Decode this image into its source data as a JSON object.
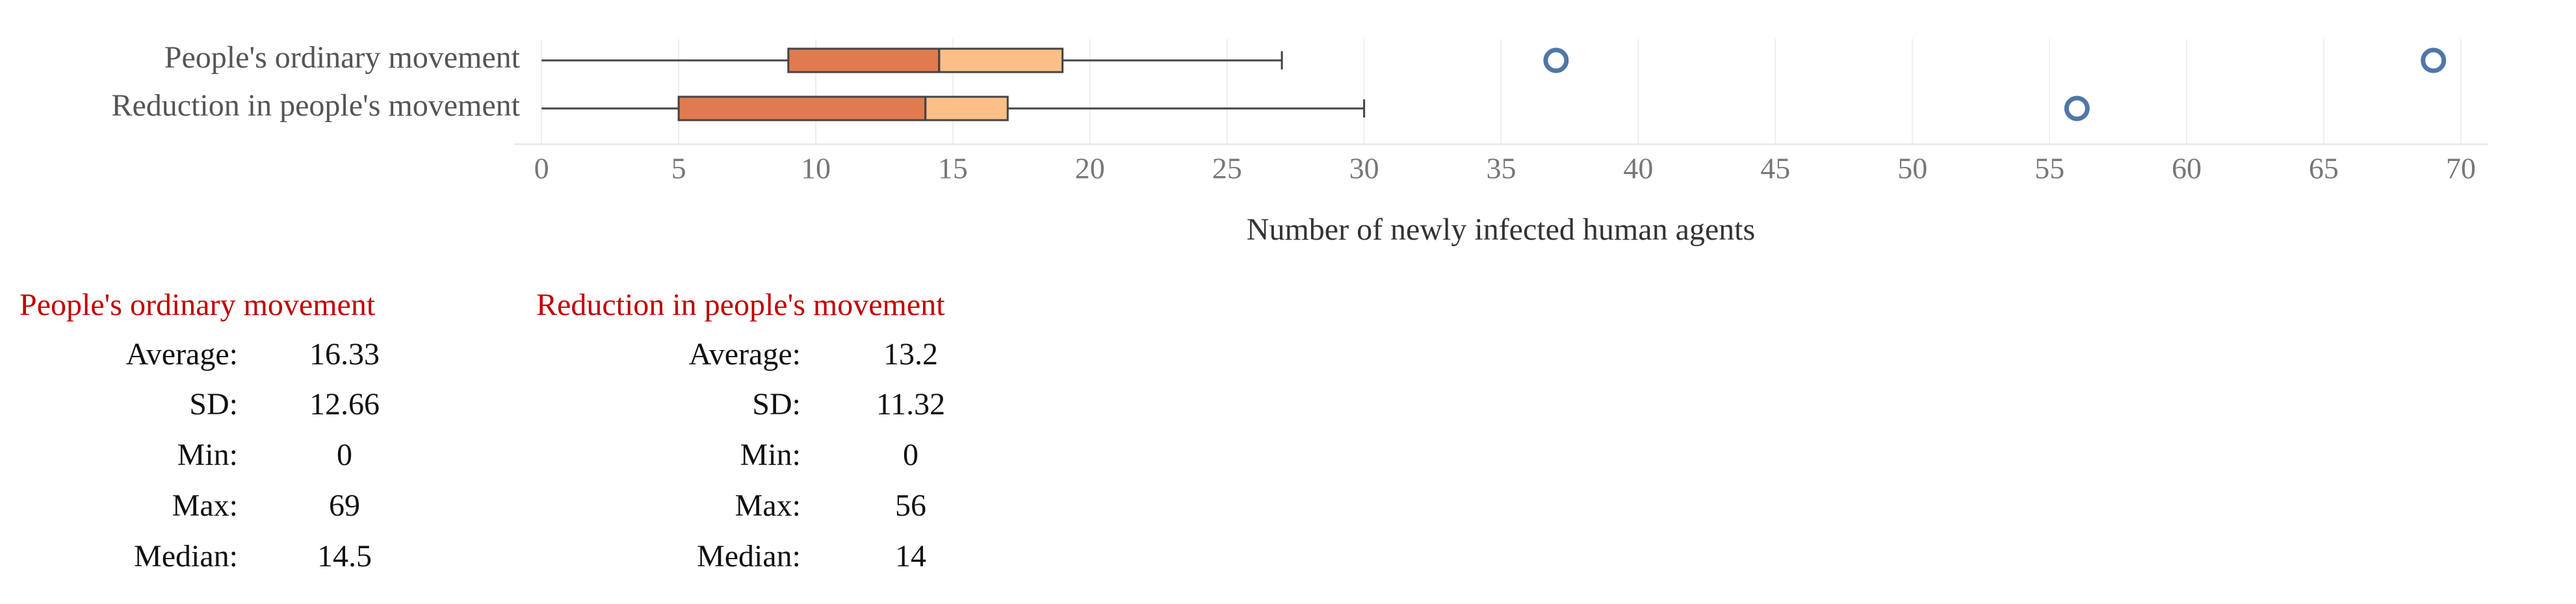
{
  "chart_data": {
    "type": "box",
    "xlabel": "Number of newly infected human agents",
    "xlim": [
      -1,
      71
    ],
    "xticks": [
      0,
      5,
      10,
      15,
      20,
      25,
      30,
      35,
      40,
      45,
      50,
      55,
      60,
      65,
      70
    ],
    "grid": true,
    "colors": {
      "lower": "#e07b4f",
      "upper": "#fdbf85",
      "outlier": "#4f77a8"
    },
    "series": [
      {
        "name": "People's ordinary movement",
        "whisker_low": 0,
        "q1": 9,
        "median": 14.5,
        "q3": 19,
        "whisker_high": 27,
        "outliers": [
          37,
          69
        ]
      },
      {
        "name": "Reduction in people's movement",
        "whisker_low": 0,
        "q1": 5,
        "median": 14,
        "q3": 17,
        "whisker_high": 30,
        "outliers": [
          56
        ]
      }
    ]
  },
  "stats": [
    {
      "title": "People's ordinary movement",
      "rows": [
        {
          "label": "Average:",
          "value": 16.33
        },
        {
          "label": "SD:",
          "value": 12.66
        },
        {
          "label": "Min:",
          "value": 0
        },
        {
          "label": "Max:",
          "value": 69
        },
        {
          "label": "Median:",
          "value": 14.5
        }
      ]
    },
    {
      "title": "Reduction in people's movement",
      "rows": [
        {
          "label": "Average:",
          "value": 13.2
        },
        {
          "label": "SD:",
          "value": 11.32
        },
        {
          "label": "Min:",
          "value": 0
        },
        {
          "label": "Max:",
          "value": 56
        },
        {
          "label": "Median:",
          "value": 14
        }
      ]
    }
  ]
}
